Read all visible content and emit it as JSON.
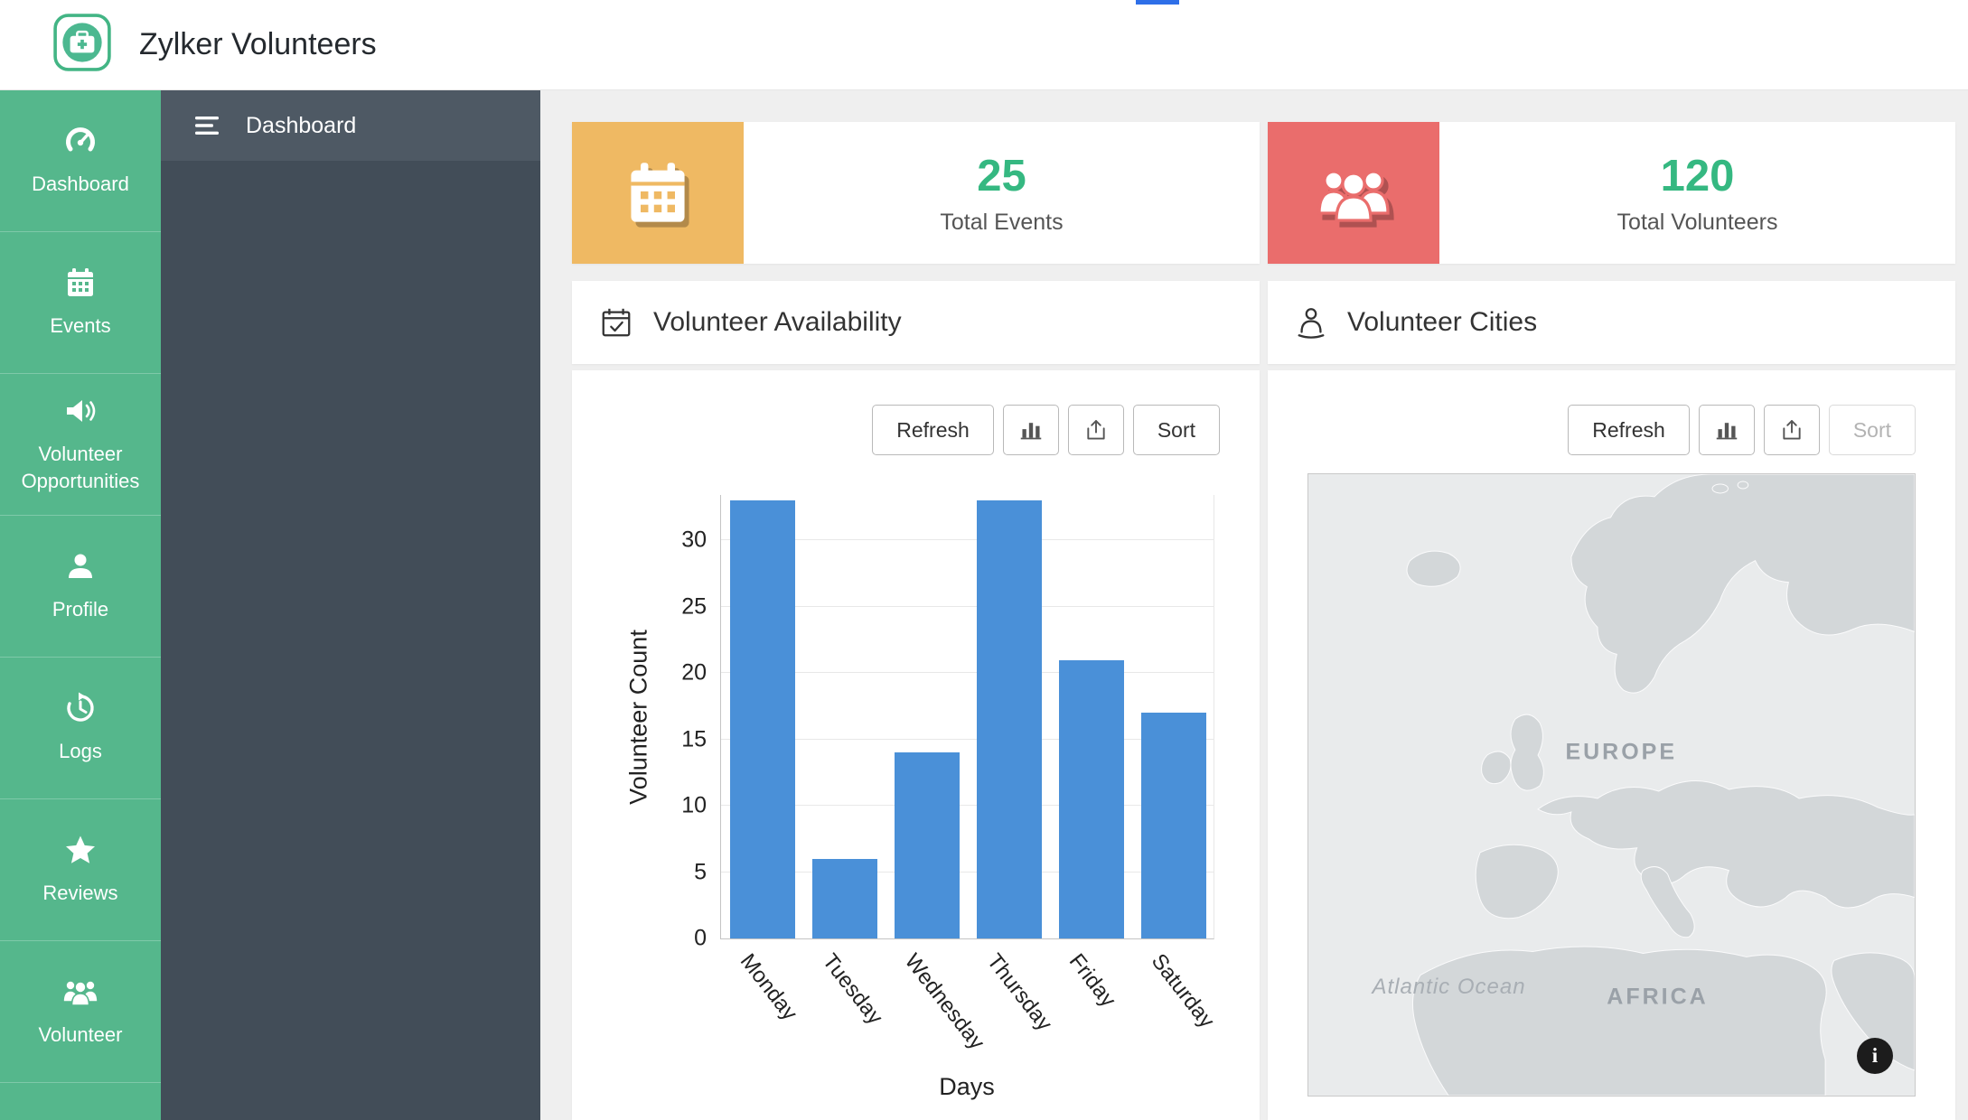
{
  "app": {
    "title": "Zylker Volunteers",
    "logo_icon": "medical-kit-icon"
  },
  "sidebar": {
    "items": [
      {
        "label": "Dashboard",
        "icon": "gauge-icon",
        "active": true
      },
      {
        "label": "Events",
        "icon": "calendar-icon"
      },
      {
        "label": "Volunteer Opportunities",
        "icon": "megaphone-icon"
      },
      {
        "label": "Profile",
        "icon": "person-icon"
      },
      {
        "label": "Logs",
        "icon": "history-icon"
      },
      {
        "label": "Reviews",
        "icon": "star-icon"
      },
      {
        "label": "Volunteer",
        "icon": "people-icon"
      }
    ]
  },
  "subnav": {
    "title": "Dashboard",
    "icon": "list-icon"
  },
  "stats": [
    {
      "value": "25",
      "label": "Total Events",
      "icon": "calendar-icon",
      "tile_color": "#efb963"
    },
    {
      "value": "120",
      "label": "Total Volunteers",
      "icon": "people-icon",
      "tile_color": "#ea6d6c"
    }
  ],
  "panels": {
    "availability": {
      "title": "Volunteer Availability",
      "icon": "calendar-check-icon",
      "toolbar": {
        "refresh": "Refresh",
        "sort": "Sort"
      }
    },
    "cities": {
      "title": "Volunteer Cities",
      "icon": "person-pin-icon",
      "toolbar": {
        "refresh": "Refresh",
        "sort": "Sort",
        "sort_disabled": true
      },
      "map": {
        "labels": {
          "europe": "EUROPE",
          "africa": "AFRICA",
          "ocean": "Atlantic Ocean"
        }
      }
    }
  },
  "chart_data": {
    "type": "bar",
    "title": "Volunteer Availability",
    "categories": [
      "Monday",
      "Tuesday",
      "Wednesday",
      "Thursday",
      "Friday",
      "Saturday"
    ],
    "values": [
      33,
      6,
      14,
      33,
      21,
      17
    ],
    "xlabel": "Days",
    "ylabel": "Volunteer Count",
    "ylim": [
      0,
      33.5
    ],
    "yticks": [
      0,
      5,
      10,
      15,
      20,
      25,
      30
    ],
    "bar_color": "#4a90d8",
    "grid": true,
    "legend": false
  },
  "colors": {
    "sidebar_green": "#55b78c",
    "dark_sidebar": "#424d58",
    "dark_sidebar_header": "#4e5964",
    "stat_value_green": "#35b881",
    "tile_orange": "#efb963",
    "tile_red": "#ea6d6c",
    "bar_blue": "#4a90d8",
    "map_land": "#d3d7d9",
    "map_sea": "#e9ebec"
  }
}
